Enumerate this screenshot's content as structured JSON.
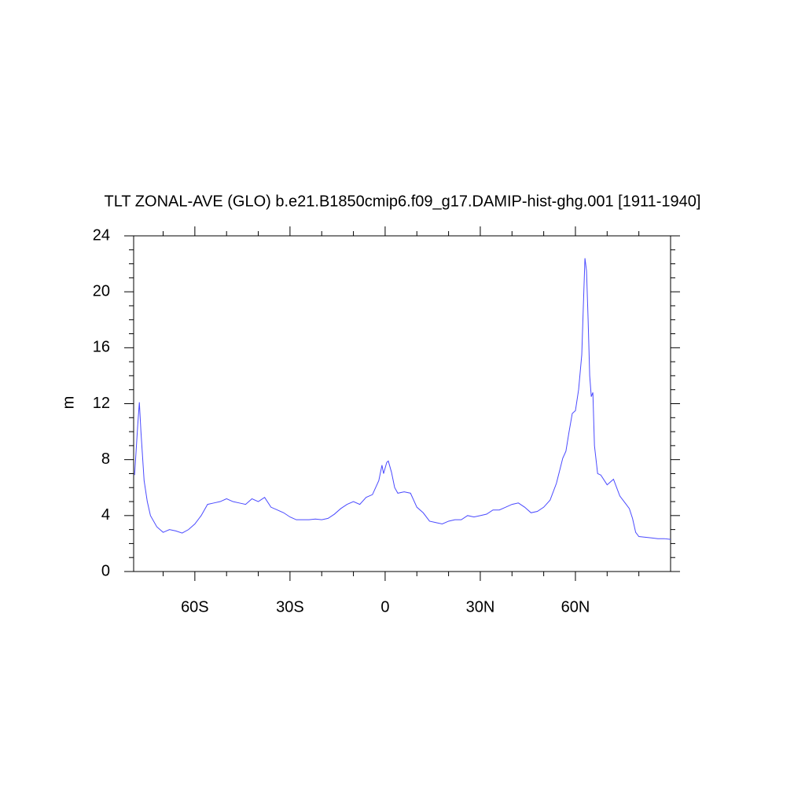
{
  "chart_data": {
    "type": "line",
    "title": "TLT ZONAL-AVE (GLO) b.e21.B1850cmip6.f09_g17.DAMIP-hist-ghg.001 [1911-1940]",
    "y_label": "m",
    "x": [
      -79,
      -78,
      -77.5,
      -77,
      -76,
      -75,
      -74,
      -72,
      -70,
      -68,
      -66,
      -64,
      -62,
      -60,
      -58,
      -56,
      -54,
      -52,
      -50,
      -48,
      -46,
      -44,
      -42,
      -40,
      -38,
      -36,
      -34,
      -32,
      -30,
      -28,
      -26,
      -24,
      -22,
      -20,
      -18,
      -16,
      -14,
      -12,
      -10,
      -8,
      -6,
      -4,
      -2,
      -1,
      -0.5,
      0.5,
      1,
      2,
      3,
      4,
      6,
      8,
      10,
      12,
      14,
      16,
      18,
      20,
      22,
      24,
      26,
      28,
      30,
      32,
      34,
      36,
      38,
      40,
      42,
      44,
      46,
      48,
      50,
      52,
      54,
      56,
      57,
      58,
      59,
      60,
      61,
      62,
      62.5,
      63,
      63.5,
      64,
      64.5,
      65,
      65.5,
      66,
      67,
      68,
      70,
      72,
      74,
      76,
      77,
      78,
      79,
      80,
      82,
      84,
      86,
      88,
      90
    ],
    "series": [
      {
        "name": "TLT",
        "color": "#4a4aff",
        "values": [
          6.9,
          10.5,
          12.1,
          10,
          6.5,
          5,
          4,
          3.2,
          2.8,
          3.0,
          2.9,
          2.75,
          3.0,
          3.4,
          4.0,
          4.8,
          4.9,
          5.0,
          5.2,
          5.0,
          4.9,
          4.8,
          5.2,
          5.0,
          5.3,
          4.6,
          4.4,
          4.2,
          3.9,
          3.7,
          3.7,
          3.7,
          3.75,
          3.7,
          3.8,
          4.1,
          4.5,
          4.8,
          5.0,
          4.8,
          5.3,
          5.5,
          6.5,
          7.6,
          7.0,
          7.8,
          7.9,
          7.1,
          6.0,
          5.6,
          5.7,
          5.6,
          4.6,
          4.2,
          3.6,
          3.5,
          3.4,
          3.6,
          3.7,
          3.7,
          4.0,
          3.9,
          4.0,
          4.1,
          4.4,
          4.4,
          4.6,
          4.8,
          4.9,
          4.6,
          4.2,
          4.3,
          4.6,
          5.1,
          6.3,
          8.1,
          8.6,
          10.0,
          11.3,
          11.5,
          13.0,
          15.5,
          19.0,
          22.4,
          21.5,
          18.0,
          14.0,
          12.5,
          12.8,
          9.0,
          7.0,
          6.9,
          6.2,
          6.6,
          5.4,
          4.8,
          4.5,
          3.8,
          2.8,
          2.5,
          2.45,
          2.4,
          2.35,
          2.35,
          2.3
        ]
      }
    ],
    "xlim": [
      -79.3,
      90
    ],
    "xticks": [
      {
        "value": -60,
        "label": "60S"
      },
      {
        "value": -30,
        "label": "30S"
      },
      0,
      {
        "value": 30,
        "label": "30N"
      },
      {
        "value": 60,
        "label": "60N"
      }
    ],
    "xminorticks": [
      -70,
      -50,
      -40,
      -20,
      -10,
      10,
      20,
      40,
      50,
      70,
      80
    ],
    "ylim": [
      0,
      24
    ],
    "yticks": [
      0,
      4,
      8,
      12,
      16,
      20,
      24
    ],
    "yminorticks": [
      1,
      2,
      3,
      5,
      6,
      7,
      9,
      10,
      11,
      13,
      14,
      15,
      17,
      18,
      19,
      21,
      22,
      23
    ]
  }
}
